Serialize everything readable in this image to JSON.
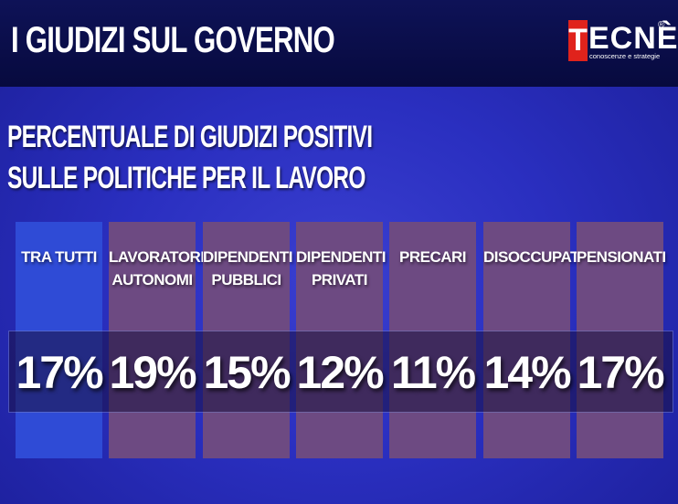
{
  "header": {
    "title": "I GIUDIZI SUL GOVERNO",
    "logo_letter": "T",
    "logo_rest": "ECNÈ",
    "logo_registered": "®",
    "logo_tagline": "conoscenze e strategie"
  },
  "subtitle": {
    "line1": "PERCENTUALE DI GIUDIZI POSITIVI",
    "line2": "SULLE POLITICHE PER IL LAVORO"
  },
  "colors": {
    "highlight_column": "#2f4bd6",
    "column": "#6d4a82",
    "logo_red": "#e0231c"
  },
  "chart_data": {
    "type": "table",
    "title": "PERCENTUALE DI GIUDIZI POSITIVI SULLE POLITICHE PER IL LAVORO",
    "categories": [
      "TRA TUTTI",
      "LAVORATORI AUTONOMI",
      "DIPENDENTI PUBBLICI",
      "DIPENDENTI PRIVATI",
      "PRECARI",
      "DISOCCUPATI",
      "PENSIONATI"
    ],
    "values": [
      17,
      19,
      15,
      12,
      11,
      14,
      17
    ],
    "unit": "%",
    "labels": [
      "TRA TUTTI",
      "LAVORATORI\nAUTONOMI",
      "DIPENDENTI\nPUBBLICI",
      "DIPENDENTI\nPRIVATI",
      "PRECARI",
      "DISOCCUPATI",
      "PENSIONATI"
    ],
    "value_labels": [
      "17%",
      "19%",
      "15%",
      "12%",
      "11%",
      "14%",
      "17%"
    ],
    "highlighted": "TRA TUTTI"
  }
}
